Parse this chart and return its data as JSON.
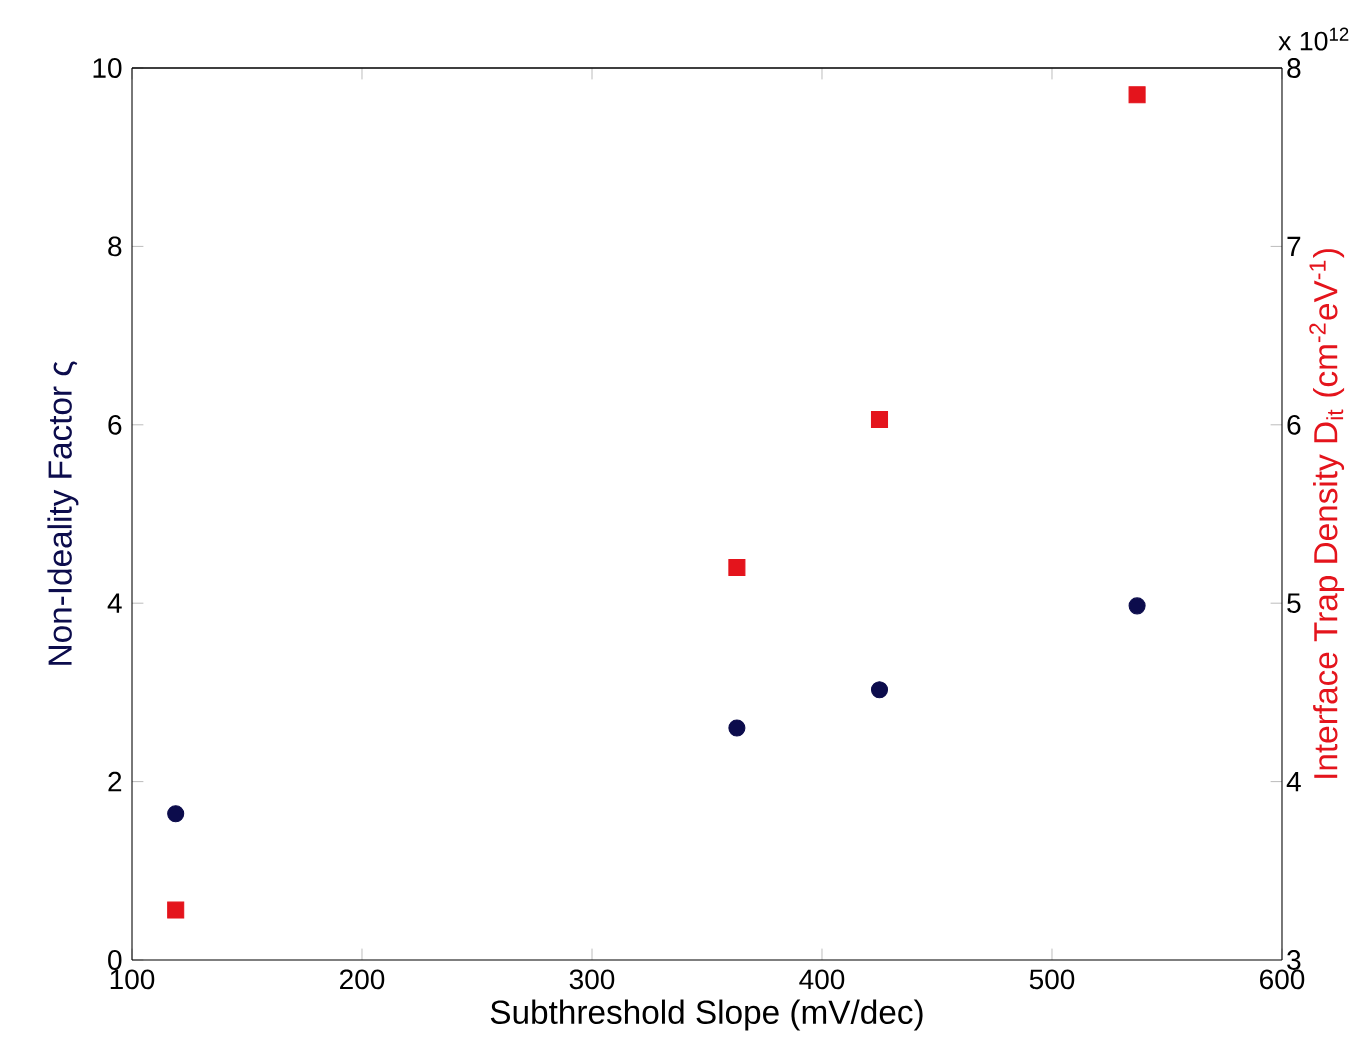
{
  "chart_data": {
    "type": "scatter",
    "xlabel": "Subthreshold Slope (mV/dec)",
    "ylabel": "Non-Ideality Factor ς",
    "y2label": "Interface Trap Density D$_{it}$ (cm$^{-2}$eV$^{-1}$)",
    "annotations": [
      "x 10$^{12}$"
    ],
    "xlim": [
      100,
      600
    ],
    "xticks": [
      100,
      200,
      300,
      400,
      500,
      600
    ],
    "ylim": [
      0,
      10
    ],
    "yticks": [
      0,
      2,
      4,
      6,
      8,
      10
    ],
    "y2lim": [
      3,
      8
    ],
    "y2ticks": [
      3,
      4,
      5,
      6,
      7,
      8
    ],
    "grid": false,
    "series": [
      {
        "color": "#0c0c4c",
        "marker": "circle",
        "x": [
          119,
          363,
          425,
          537
        ],
        "values": [
          1.64,
          2.6,
          3.03,
          3.97
        ]
      },
      {
        "color": "#e4141c",
        "marker": "square",
        "axis": "y2",
        "x": [
          119,
          363,
          425,
          537
        ],
        "values": [
          3.28,
          5.2,
          6.03,
          7.85
        ]
      }
    ]
  }
}
